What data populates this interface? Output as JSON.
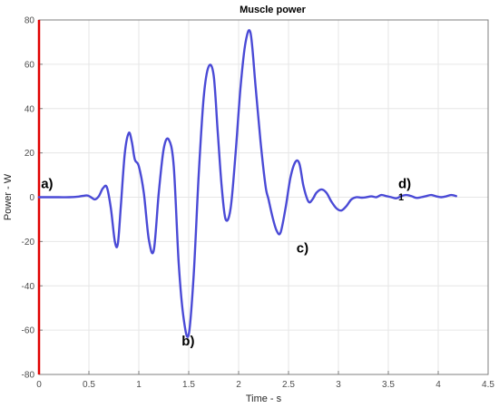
{
  "chart_data": {
    "type": "line",
    "title": "Muscle power",
    "xlabel": "Time - s",
    "ylabel": "Power - W",
    "xlim": [
      0,
      4.5
    ],
    "ylim": [
      -80,
      80
    ],
    "x_ticks": [
      0,
      0.5,
      1,
      1.5,
      2,
      2.5,
      3,
      3.5,
      4,
      4.5
    ],
    "x_tick_labels": [
      "0",
      "0.5",
      "1",
      "1.5",
      "2",
      "2.5",
      "3",
      "3.5",
      "4",
      "4.5"
    ],
    "y_ticks": [
      80,
      60,
      40,
      20,
      0,
      -20,
      -40,
      -60,
      -80
    ],
    "y_tick_labels": [
      "80",
      "60",
      "40",
      "20",
      "0",
      "-20",
      "-40",
      "-60",
      "-80"
    ],
    "grid": true,
    "colors": {
      "line": "#4a4ad6",
      "yaxis": "#e00000",
      "grid": "#e6e6e6",
      "axes": "#7f7f7f"
    },
    "series": [
      {
        "x": [
          0,
          0.1,
          0.2,
          0.3,
          0.4,
          0.48,
          0.52,
          0.56,
          0.6,
          0.64,
          0.68,
          0.72,
          0.76,
          0.79,
          0.82,
          0.86,
          0.9,
          0.93,
          0.96,
          1.0,
          1.05,
          1.1,
          1.15,
          1.2,
          1.25,
          1.3,
          1.35,
          1.4,
          1.45,
          1.5,
          1.55,
          1.6,
          1.65,
          1.7,
          1.75,
          1.79,
          1.83,
          1.87,
          1.92,
          1.97,
          2.02,
          2.07,
          2.12,
          2.17,
          2.22,
          2.27,
          2.3,
          2.34,
          2.38,
          2.42,
          2.47,
          2.52,
          2.57,
          2.61,
          2.65,
          2.7,
          2.74,
          2.78,
          2.83,
          2.88,
          2.93,
          2.98,
          3.03,
          3.08,
          3.13,
          3.18,
          3.23,
          3.28,
          3.33,
          3.38,
          3.43,
          3.48,
          3.53,
          3.58,
          3.63,
          3.68,
          3.73,
          3.78,
          3.83,
          3.88,
          3.93,
          3.98,
          4.03,
          4.08,
          4.13,
          4.18
        ],
        "values": [
          0,
          0,
          0,
          0,
          0.3,
          0.8,
          0,
          -1,
          0.5,
          4,
          4.5,
          -5,
          -20,
          -21,
          -4,
          20,
          29,
          25,
          17,
          14,
          2,
          -19,
          -24,
          2,
          22,
          26,
          14,
          -30,
          -55,
          -62,
          -35,
          10,
          45,
          59,
          55,
          30,
          5,
          -10,
          -5,
          20,
          50,
          70,
          74,
          50,
          25,
          5,
          -1,
          -9,
          -15,
          -16,
          -5,
          9,
          16,
          15,
          5,
          -2,
          -1,
          2,
          3.5,
          2,
          -2,
          -5,
          -6,
          -4,
          -1,
          0,
          -0.2,
          0,
          0.4,
          0,
          1,
          0.5,
          0,
          -0.5,
          0.5,
          1,
          0.5,
          -0.3,
          0,
          0.5,
          1,
          0.4,
          0,
          0.4,
          1,
          0.5
        ]
      }
    ],
    "annotations": [
      {
        "text": "a)",
        "x": 0.02,
        "y": 4
      },
      {
        "text": "b)",
        "x": 1.43,
        "y": -67
      },
      {
        "text": "c)",
        "x": 2.58,
        "y": -25
      },
      {
        "text": "d)",
        "x": 3.6,
        "y": 4
      },
      {
        "text": "1",
        "x": 3.6,
        "y": -1.5,
        "small": true
      }
    ]
  }
}
